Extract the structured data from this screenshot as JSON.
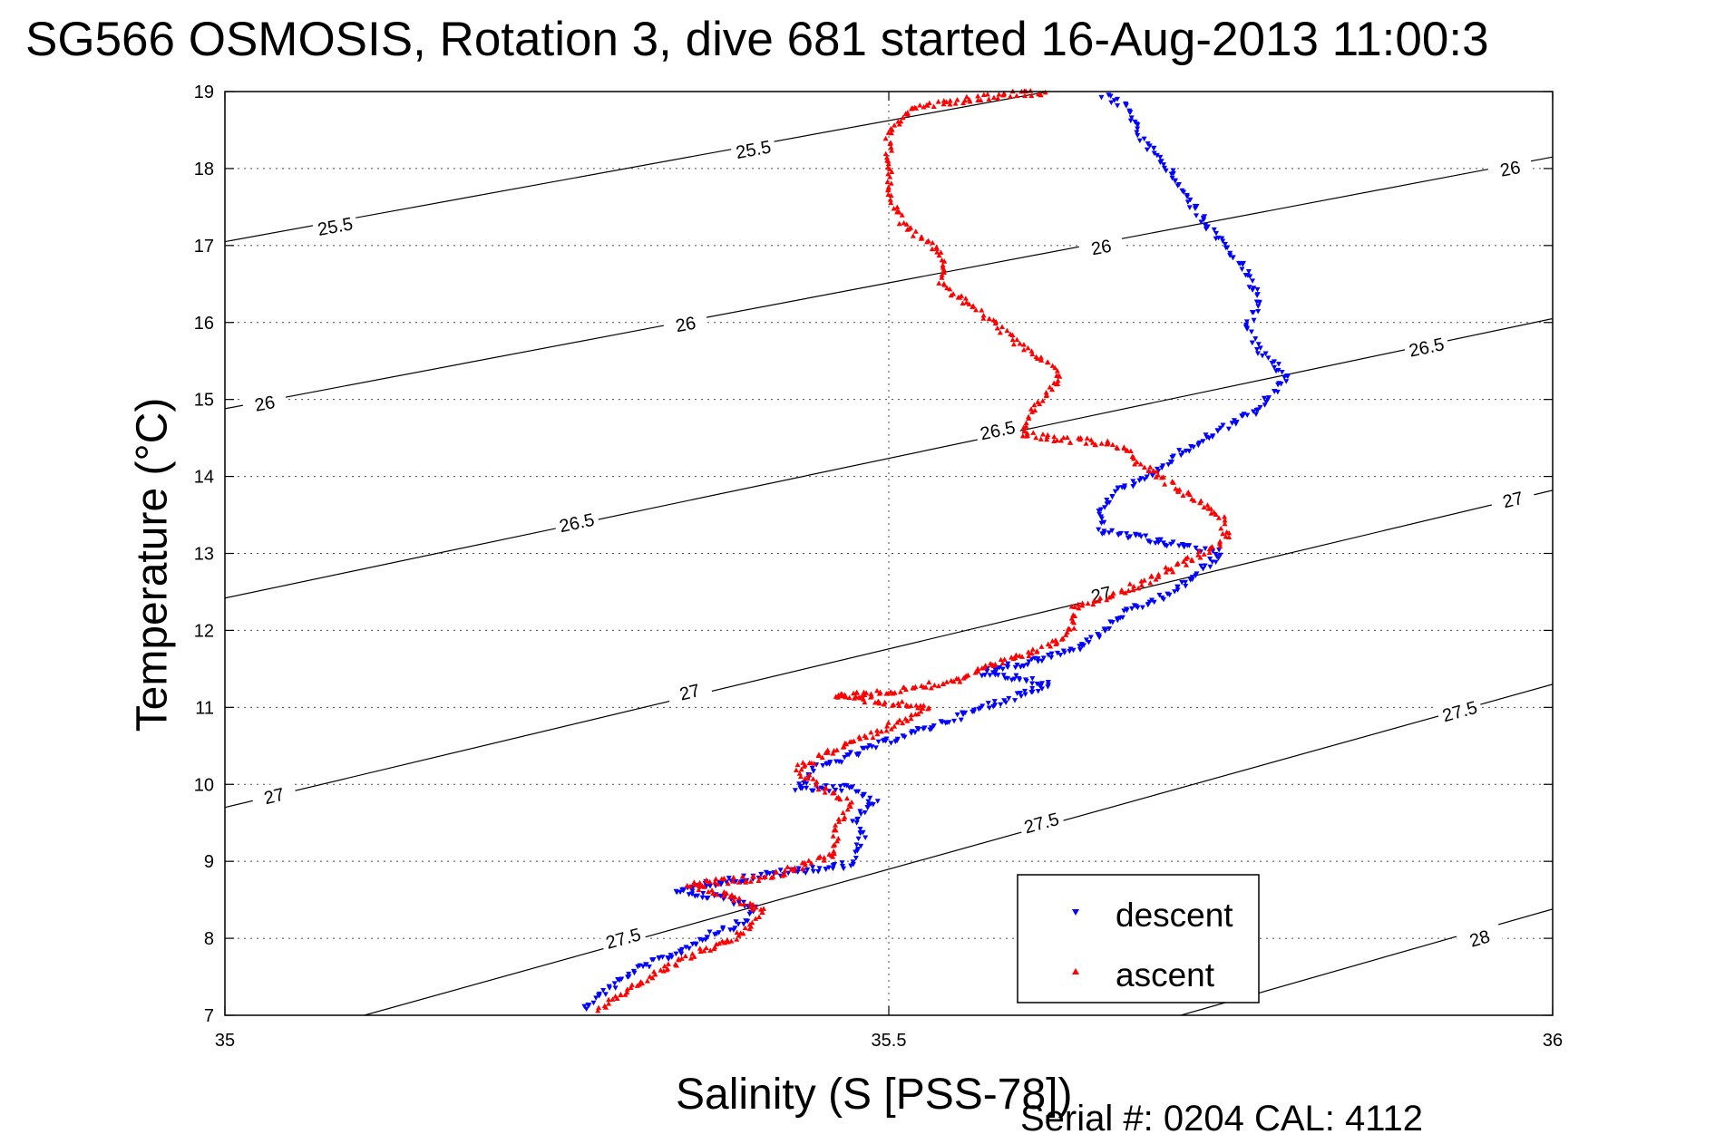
{
  "chart_data": {
    "type": "scatter",
    "title": "SG566 OSMOSIS, Rotation 3, dive 681 started 16-Aug-2013 11:00:3",
    "xlabel": "Salinity (S [PSS-78])",
    "ylabel": "Temperature (°C)",
    "xlim": [
      35,
      36
    ],
    "ylim": [
      7,
      19
    ],
    "xticks": [
      35,
      35.5,
      36
    ],
    "xtick_labels": [
      "35",
      "35.5",
      "36"
    ],
    "yticks": [
      7,
      8,
      9,
      10,
      11,
      12,
      13,
      14,
      15,
      16,
      17,
      18,
      19
    ],
    "ytick_labels": [
      "7",
      "8",
      "9",
      "10",
      "11",
      "12",
      "13",
      "14",
      "15",
      "16",
      "17",
      "18",
      "19"
    ],
    "grid": true,
    "legend_position": "bottom-center",
    "footer": "Serial #: 0204  CAL: 4112",
    "colors": {
      "descent": "#0000ff",
      "ascent": "#ff0000",
      "contour": "#000000"
    },
    "isopycnals": [
      {
        "label": "25.5",
        "points": [
          [
            35.0,
            17.05
          ],
          [
            35.62,
            19.0
          ]
        ],
        "label_positions": [
          [
            35.083,
            17.25
          ],
          [
            35.398,
            18.25
          ]
        ]
      },
      {
        "label": "26",
        "points": [
          [
            35.0,
            14.88
          ],
          [
            36.0,
            18.15
          ]
        ],
        "label_positions": [
          [
            35.03,
            14.95
          ],
          [
            35.347,
            15.98
          ],
          [
            35.66,
            16.98
          ],
          [
            35.968,
            18.0
          ]
        ]
      },
      {
        "label": "26.5",
        "points": [
          [
            35.0,
            12.42
          ],
          [
            36.0,
            16.05
          ]
        ],
        "label_positions": [
          [
            35.265,
            13.4
          ],
          [
            35.582,
            14.6
          ],
          [
            35.905,
            15.68
          ]
        ]
      },
      {
        "label": "27",
        "points": [
          [
            35.0,
            9.7
          ],
          [
            36.0,
            13.82
          ]
        ],
        "label_positions": [
          [
            35.037,
            9.85
          ],
          [
            35.35,
            11.2
          ],
          [
            35.66,
            12.47
          ],
          [
            35.97,
            13.7
          ]
        ]
      },
      {
        "label": "27.5",
        "points": [
          [
            35.105,
            7.0
          ],
          [
            36.0,
            11.3
          ]
        ],
        "label_positions": [
          [
            35.3,
            8.0
          ],
          [
            35.615,
            9.5
          ],
          [
            35.93,
            10.95
          ]
        ]
      },
      {
        "label": "28",
        "points": [
          [
            35.72,
            7.0
          ],
          [
            36.0,
            8.38
          ]
        ],
        "label_positions": [
          [
            35.945,
            8.0
          ]
        ]
      }
    ],
    "series": [
      {
        "name": "descent",
        "marker": "triangle-down",
        "color": "#0000ff",
        "path": [
          [
            35.27,
            7.1
          ],
          [
            35.285,
            7.3
          ],
          [
            35.31,
            7.6
          ],
          [
            35.34,
            7.8
          ],
          [
            35.365,
            8.05
          ],
          [
            35.39,
            8.2
          ],
          [
            35.4,
            8.4
          ],
          [
            35.37,
            8.55
          ],
          [
            35.34,
            8.6
          ],
          [
            35.36,
            8.7
          ],
          [
            35.42,
            8.85
          ],
          [
            35.47,
            8.95
          ],
          [
            35.48,
            9.3
          ],
          [
            35.475,
            9.55
          ],
          [
            35.49,
            9.75
          ],
          [
            35.475,
            9.95
          ],
          [
            35.43,
            9.95
          ],
          [
            35.445,
            10.2
          ],
          [
            35.49,
            10.5
          ],
          [
            35.54,
            10.8
          ],
          [
            35.58,
            11.05
          ],
          [
            35.62,
            11.3
          ],
          [
            35.57,
            11.45
          ],
          [
            35.61,
            11.6
          ],
          [
            35.64,
            11.75
          ],
          [
            35.66,
            11.95
          ],
          [
            35.675,
            12.2
          ],
          [
            35.71,
            12.45
          ],
          [
            35.73,
            12.7
          ],
          [
            35.75,
            13.0
          ],
          [
            35.66,
            13.3
          ],
          [
            35.66,
            13.55
          ],
          [
            35.67,
            13.8
          ],
          [
            35.7,
            14.05
          ],
          [
            35.72,
            14.3
          ],
          [
            35.75,
            14.6
          ],
          [
            35.78,
            14.9
          ],
          [
            35.8,
            15.3
          ],
          [
            35.78,
            15.6
          ],
          [
            35.77,
            15.95
          ],
          [
            35.78,
            16.3
          ],
          [
            35.765,
            16.75
          ],
          [
            35.745,
            17.15
          ],
          [
            35.73,
            17.5
          ],
          [
            35.71,
            18.0
          ],
          [
            35.69,
            18.4
          ],
          [
            35.68,
            18.8
          ],
          [
            35.66,
            18.95
          ]
        ]
      },
      {
        "name": "ascent",
        "marker": "triangle-up",
        "color": "#ff0000",
        "path": [
          [
            35.28,
            7.05
          ],
          [
            35.3,
            7.3
          ],
          [
            35.33,
            7.6
          ],
          [
            35.36,
            7.85
          ],
          [
            35.39,
            8.05
          ],
          [
            35.405,
            8.35
          ],
          [
            35.38,
            8.55
          ],
          [
            35.35,
            8.7
          ],
          [
            35.41,
            8.8
          ],
          [
            35.46,
            9.1
          ],
          [
            35.46,
            9.4
          ],
          [
            35.47,
            9.75
          ],
          [
            35.45,
            9.95
          ],
          [
            35.43,
            10.2
          ],
          [
            35.46,
            10.45
          ],
          [
            35.5,
            10.75
          ],
          [
            35.53,
            11.0
          ],
          [
            35.46,
            11.15
          ],
          [
            35.5,
            11.2
          ],
          [
            35.55,
            11.35
          ],
          [
            35.58,
            11.55
          ],
          [
            35.62,
            11.8
          ],
          [
            35.64,
            12.05
          ],
          [
            35.64,
            12.3
          ],
          [
            35.69,
            12.6
          ],
          [
            35.73,
            12.95
          ],
          [
            35.755,
            13.2
          ],
          [
            35.75,
            13.5
          ],
          [
            35.72,
            13.8
          ],
          [
            35.69,
            14.15
          ],
          [
            35.675,
            14.4
          ],
          [
            35.6,
            14.55
          ],
          [
            35.61,
            14.9
          ],
          [
            35.63,
            15.3
          ],
          [
            35.6,
            15.7
          ],
          [
            35.57,
            16.1
          ],
          [
            35.54,
            16.5
          ],
          [
            35.54,
            16.9
          ],
          [
            35.51,
            17.3
          ],
          [
            35.5,
            17.7
          ],
          [
            35.5,
            18.1
          ],
          [
            35.5,
            18.5
          ],
          [
            35.52,
            18.8
          ],
          [
            35.58,
            18.95
          ],
          [
            35.62,
            19.0
          ]
        ]
      }
    ]
  },
  "legend": {
    "items": [
      {
        "label": "descent",
        "color": "#0000ff"
      },
      {
        "label": "ascent",
        "color": "#ff0000"
      }
    ]
  }
}
